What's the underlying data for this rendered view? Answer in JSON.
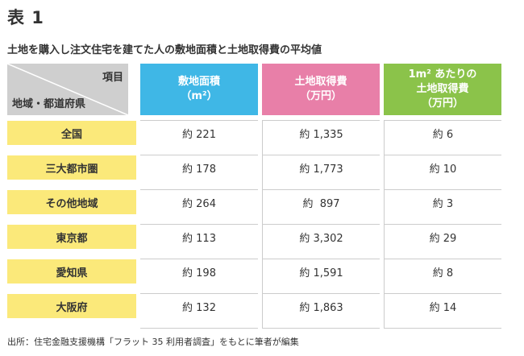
{
  "heading": "表 1",
  "subtitle": "土地を購入し注文住宅を建てた人の敷地面積と土地取得費の平均値",
  "corner": {
    "item_label": "項目",
    "region_label": "地域・都道府県"
  },
  "columns": [
    {
      "line1": "敷地面積",
      "line2": "（m²）",
      "line3": ""
    },
    {
      "line1": "土地取得費",
      "line2": "（万円）",
      "line3": ""
    },
    {
      "line1": "1m² あたりの",
      "line2": "土地取得費",
      "line3": "（万円）"
    }
  ],
  "rows": [
    {
      "region": "全国",
      "area": "約 221",
      "cost": "約 1,335",
      "per_m2": "約 6"
    },
    {
      "region": "三大都市圏",
      "area": "約 178",
      "cost": "約 1,773",
      "per_m2": "約 10"
    },
    {
      "region": "その他地域",
      "area": "約 264",
      "cost": "約  897",
      "per_m2": "約 3"
    },
    {
      "region": "東京都",
      "area": "約 113",
      "cost": "約 3,302",
      "per_m2": "約 29"
    },
    {
      "region": "愛知県",
      "area": "約 198",
      "cost": "約 1,591",
      "per_m2": "約 8"
    },
    {
      "region": "大阪府",
      "area": "約 132",
      "cost": "約 1,863",
      "per_m2": "約 14"
    }
  ],
  "source": "出所：住宅金融支援機構「フラット 35 利用者調査」をもとに筆者が編集",
  "colors": {
    "col_area": "#3fb7e6",
    "col_cost": "#e87fa8",
    "col_per_m2": "#8bc34a",
    "row_label": "#fbe97a",
    "corner": "#cfcfcf"
  }
}
